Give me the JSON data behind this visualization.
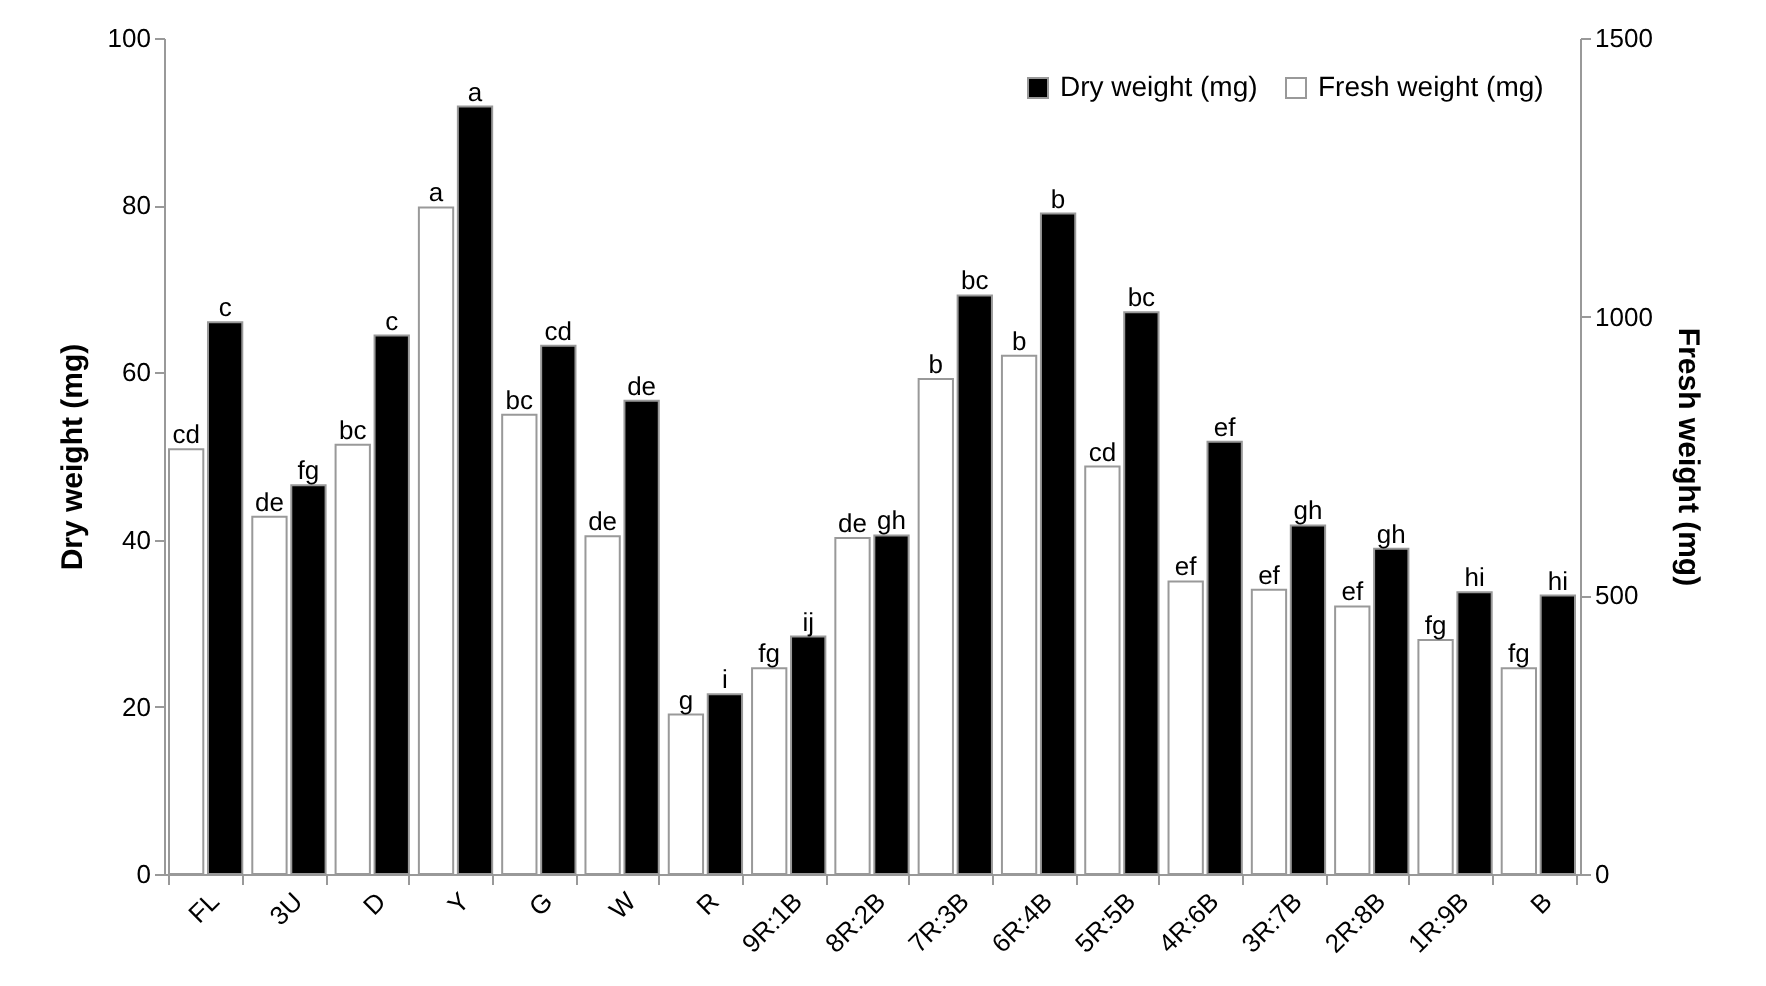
{
  "chart_data": {
    "type": "bar",
    "categories": [
      "FL",
      "3U",
      "D",
      "Y",
      "G",
      "W",
      "R",
      "9R:1B",
      "8R:2B",
      "7R:3B",
      "6R:4B",
      "5R:5B",
      "4R:6B",
      "3R:7B",
      "2R:8B",
      "1R:9B",
      "B"
    ],
    "ylabel": "Dry weight (mg)",
    "y2label": "Fresh weight (mg)",
    "ylim": [
      0,
      100
    ],
    "yticks": [
      0,
      20,
      40,
      60,
      80,
      100
    ],
    "y2lim": [
      0,
      1500
    ],
    "y2ticks": [
      0,
      500,
      1000,
      1500
    ],
    "grid": false,
    "legend": "top right",
    "series": [
      {
        "name": "Dry weight (mg)",
        "color": "#000000",
        "values": [
          66.0,
          46.5,
          64.4,
          91.8,
          63.2,
          56.6,
          21.5,
          28.4,
          40.5,
          69.2,
          79.0,
          67.2,
          51.7,
          41.7,
          38.9,
          33.7,
          33.3
        ],
        "value_labels": [
          "c",
          "fg",
          "c",
          "a",
          "cd",
          "de",
          "i",
          "ij",
          "gh",
          "bc",
          "b",
          "bc",
          "ef",
          "gh",
          "gh",
          "hi",
          "hi"
        ]
      },
      {
        "name": "Fresh weight (mg)",
        "color": "#ffffff",
        "axis": "y2",
        "values": [
          762,
          641,
          770,
          1196,
          824,
          606,
          286,
          369,
          603,
          888,
          930,
          731,
          525,
          510,
          480,
          420,
          369
        ],
        "value_labels": [
          "cd",
          "de",
          "bc",
          "a",
          "bc",
          "de",
          "g",
          "fg",
          "de",
          "b",
          "b",
          "cd",
          "ef",
          "ef",
          "ef",
          "fg",
          "fg"
        ]
      }
    ]
  }
}
